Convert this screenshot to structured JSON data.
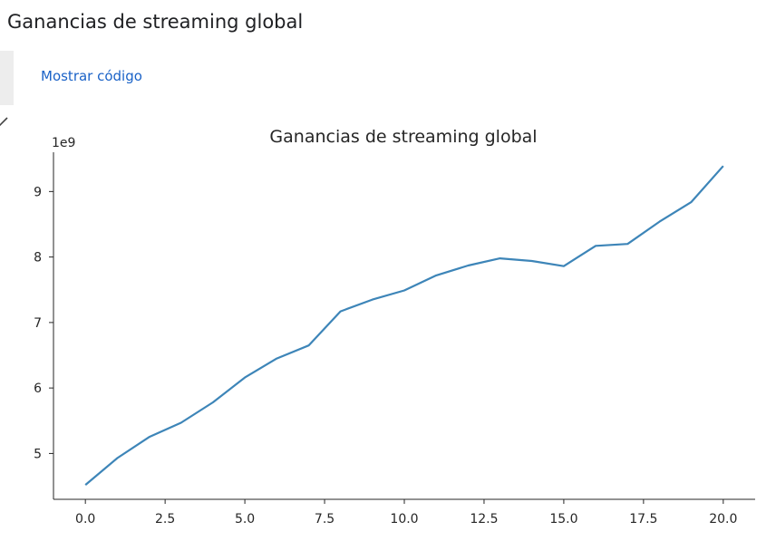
{
  "cell": {
    "title": "Ganancias de streaming global",
    "show_code_label": "Mostrar código"
  },
  "icons": {
    "gutter": "run-cell-icon",
    "collapse": "collapse-arrow-icon"
  },
  "colors": {
    "line": "#3d85b8",
    "link": "#1a62c7"
  },
  "chart_data": {
    "type": "line",
    "title": "Ganancias de streaming global",
    "offset_label": "1e9",
    "xlabel": "",
    "ylabel": "",
    "xlim": [
      -1.0,
      21.0
    ],
    "ylim": [
      4300000000.0,
      9600000000.0
    ],
    "x_ticks": [
      0.0,
      2.5,
      5.0,
      7.5,
      10.0,
      12.5,
      15.0,
      17.5,
      20.0
    ],
    "x_tick_labels": [
      "0.0",
      "2.5",
      "5.0",
      "7.5",
      "10.0",
      "12.5",
      "15.0",
      "17.5",
      "20.0"
    ],
    "y_ticks": [
      5000000000.0,
      6000000000.0,
      7000000000.0,
      8000000000.0,
      9000000000.0
    ],
    "y_tick_labels": [
      "5",
      "6",
      "7",
      "8",
      "9"
    ],
    "grid": false,
    "series": [
      {
        "x": [
          0,
          1,
          2,
          3,
          4,
          5,
          6,
          7,
          8,
          9,
          10,
          11,
          12,
          13,
          14,
          15,
          16,
          17,
          18,
          19,
          20
        ],
        "values": [
          4520000000.0,
          4930000000.0,
          5250000000.0,
          5470000000.0,
          5780000000.0,
          6160000000.0,
          6450000000.0,
          6650000000.0,
          7170000000.0,
          7350000000.0,
          7490000000.0,
          7720000000.0,
          7870000000.0,
          7980000000.0,
          7940000000.0,
          7860000000.0,
          8170000000.0,
          8200000000.0,
          8540000000.0,
          8840000000.0,
          9390000000.0
        ]
      }
    ]
  }
}
